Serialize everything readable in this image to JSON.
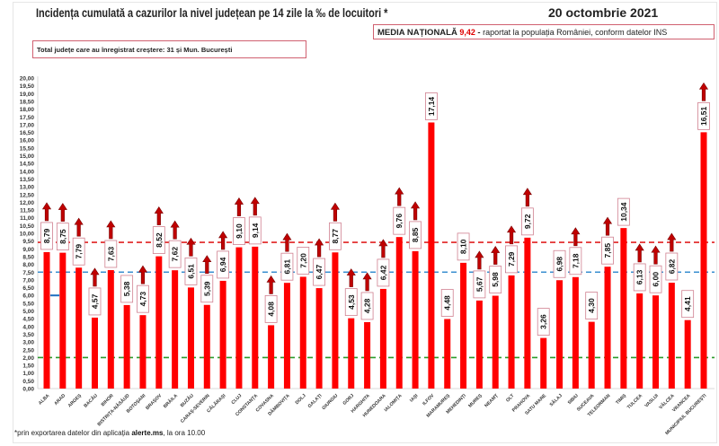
{
  "header": {
    "title": "Incidența cumulată a cazurilor la nivel județean pe 14 zile la ‰ de locuitori *",
    "date": "20 octombrie 2021",
    "media_label": "MEDIA NAȚIONALĂ",
    "media_value": "9,42",
    "media_sep": "-",
    "media_note": "raportat la populația României, conform datelor INS",
    "total_note": "Total județe care au înregistrat creștere:  31 și Mun. București"
  },
  "footer": {
    "prefix": "*prin exportarea datelor din aplicația ",
    "app": "alerte.ms",
    "suffix": ", la ora 10.00"
  },
  "chart_data": {
    "type": "bar",
    "title": "Incidența cumulată a cazurilor la nivel județean pe 14 zile la ‰ de locuitori *",
    "ylim": [
      0,
      20
    ],
    "ytick_step": 0.5,
    "decimal_separator": ",",
    "grid": false,
    "bar_color": "#ff0000",
    "arrow_color": "#c00000",
    "categories": [
      "ALBA",
      "ARAD",
      "ARGEȘ",
      "BACĂU",
      "BIHOR",
      "BISTRIȚA-NĂSĂUD",
      "BOTOȘANI",
      "BRAȘOV",
      "BRĂILA",
      "BUZĂU",
      "CARAȘ-SEVERIN",
      "CĂLĂRAȘI",
      "CLUJ",
      "CONSTANȚA",
      "COVASNA",
      "DÂMBOVIȚA",
      "DOLJ",
      "GALAȚI",
      "GIURGIU",
      "GORJ",
      "HARGHITA",
      "HUNEDOARA",
      "IALOMIȚA",
      "IAȘI",
      "ILFOV",
      "MARAMUREȘ",
      "MEHEDINȚI",
      "MUREȘ",
      "NEAMȚ",
      "OLT",
      "PRAHOVA",
      "SATU MARE",
      "SĂLAJ",
      "SIBIU",
      "SUCEAVA",
      "TELEORMAN",
      "TIMIȘ",
      "TULCEA",
      "VASLUI",
      "VÂLCEA",
      "VRANCEA",
      "MUNICIPIUL BUCUREȘTI"
    ],
    "values": [
      8.79,
      8.75,
      7.79,
      4.57,
      7.63,
      5.38,
      4.73,
      8.52,
      7.62,
      6.51,
      5.39,
      6.94,
      9.1,
      9.14,
      4.08,
      6.81,
      7.2,
      6.47,
      8.77,
      4.53,
      4.28,
      6.42,
      9.76,
      8.85,
      17.14,
      4.48,
      8.1,
      5.67,
      5.98,
      7.29,
      9.72,
      3.26,
      6.98,
      7.18,
      4.3,
      7.85,
      10.34,
      6.13,
      6.0,
      6.82,
      4.41,
      16.51
    ],
    "increase": [
      true,
      true,
      true,
      true,
      true,
      false,
      true,
      true,
      true,
      true,
      true,
      true,
      true,
      true,
      true,
      true,
      false,
      true,
      true,
      true,
      true,
      true,
      true,
      true,
      false,
      false,
      false,
      true,
      true,
      true,
      true,
      false,
      false,
      true,
      false,
      true,
      false,
      true,
      true,
      true,
      false,
      true
    ],
    "reference_lines": [
      {
        "value": 9.42,
        "color": "#e02020",
        "style": "dashed"
      },
      {
        "value": 7.5,
        "color": "#3a8fd0",
        "style": "dashed"
      },
      {
        "value": 2.0,
        "color": "#2a9a2a",
        "style": "dashed"
      }
    ],
    "marker": {
      "value": 6.0,
      "color": "#1f6fc0"
    }
  }
}
